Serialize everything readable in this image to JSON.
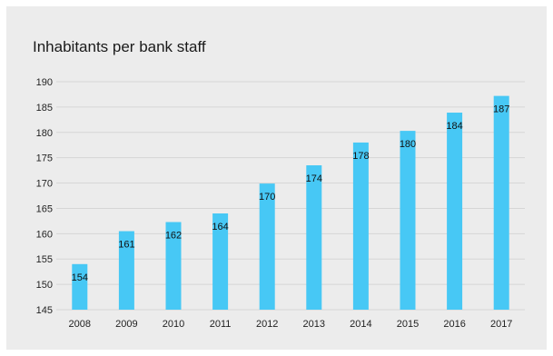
{
  "chart_data": {
    "type": "bar",
    "title": "Inhabitants per bank staff",
    "xlabel": "",
    "ylabel": "",
    "categories": [
      "2008",
      "2009",
      "2010",
      "2011",
      "2012",
      "2013",
      "2014",
      "2015",
      "2016",
      "2017"
    ],
    "values": [
      154,
      160.5,
      162.3,
      164,
      169.9,
      173.5,
      178,
      180.3,
      183.9,
      187.2
    ],
    "value_labels": [
      "154",
      "161",
      "162",
      "164",
      "170",
      "174",
      "178",
      "180",
      "184",
      "187"
    ],
    "ylim": [
      145,
      190
    ],
    "yticks": [
      145,
      150,
      155,
      160,
      165,
      170,
      175,
      180,
      185,
      190
    ],
    "grid": true,
    "legend": "none",
    "colors": {
      "bar": "#47c8f5",
      "grid": "#d6d6d6",
      "background": "#ececec"
    }
  }
}
